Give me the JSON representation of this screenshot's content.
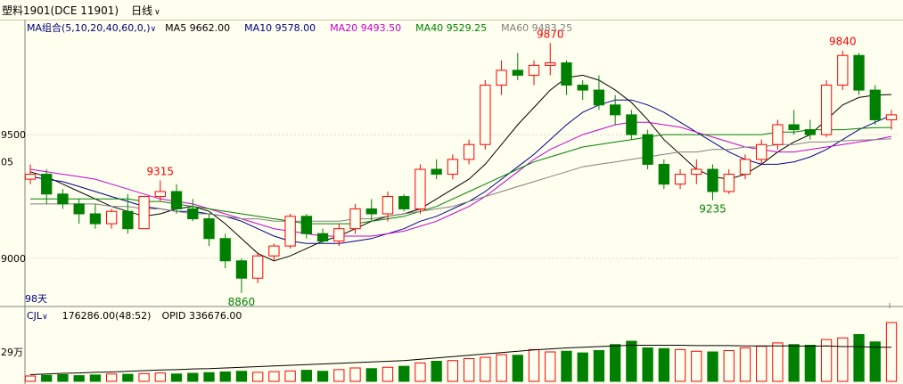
{
  "header": {
    "instrument": "塑料1901(DCE 11901)",
    "period_label": "日线",
    "period_chevron_icon": "chevron-down-icon"
  },
  "legend": {
    "combo_label": "MA组合(5,10,20,40,60,0,)",
    "items": [
      {
        "label": "MA5 9662.00",
        "color": "#000000"
      },
      {
        "label": "MA10 9578.00",
        "color": "#00008b"
      },
      {
        "label": "MA20 9493.50",
        "color": "#cc00cc"
      },
      {
        "label": "MA40 9529.25",
        "color": "#008000"
      },
      {
        "label": "MA60 9483.25",
        "color": "#808080"
      }
    ]
  },
  "volume_legend": {
    "indicator_label": "CJL",
    "volume": "176286.00(48:52)",
    "opid": "OPID 336676.00"
  },
  "axis": {
    "price_ticks": [
      "05",
      "9500",
      "9000"
    ],
    "days_label": "98天",
    "volume_tick": "29万"
  },
  "chart_data": {
    "type": "candlestick",
    "title": "",
    "ylim": [
      8820,
      9900
    ],
    "grid": true,
    "annotations": [
      {
        "text": "9870",
        "kind": "high",
        "bar": 32
      },
      {
        "text": "9315",
        "kind": "high",
        "bar": 8
      },
      {
        "text": "8860",
        "kind": "low",
        "bar": 13
      },
      {
        "text": "9235",
        "kind": "low",
        "bar": 42
      },
      {
        "text": "9840",
        "kind": "high",
        "bar": 50
      }
    ],
    "up_color": "#ff0000",
    "down_color": "#008000",
    "candles": [
      [
        9320,
        9380,
        9300,
        9340
      ],
      [
        9340,
        9360,
        9220,
        9260
      ],
      [
        9260,
        9280,
        9200,
        9220
      ],
      [
        9220,
        9240,
        9140,
        9180
      ],
      [
        9180,
        9220,
        9120,
        9140
      ],
      [
        9140,
        9200,
        9120,
        9190
      ],
      [
        9190,
        9260,
        9100,
        9120
      ],
      [
        9120,
        9250,
        9120,
        9250
      ],
      [
        9250,
        9315,
        9230,
        9270
      ],
      [
        9270,
        9300,
        9180,
        9200
      ],
      [
        9200,
        9240,
        9150,
        9160
      ],
      [
        9160,
        9180,
        9050,
        9080
      ],
      [
        9080,
        9100,
        8960,
        8990
      ],
      [
        8990,
        9000,
        8860,
        8920
      ],
      [
        8920,
        9020,
        8900,
        9010
      ],
      [
        9010,
        9060,
        8990,
        9050
      ],
      [
        9050,
        9180,
        9040,
        9170
      ],
      [
        9170,
        9180,
        9080,
        9100
      ],
      [
        9100,
        9120,
        9060,
        9070
      ],
      [
        9070,
        9140,
        9050,
        9120
      ],
      [
        9120,
        9220,
        9100,
        9200
      ],
      [
        9200,
        9240,
        9150,
        9180
      ],
      [
        9180,
        9270,
        9150,
        9250
      ],
      [
        9250,
        9260,
        9190,
        9200
      ],
      [
        9200,
        9380,
        9180,
        9360
      ],
      [
        9360,
        9400,
        9320,
        9340
      ],
      [
        9340,
        9420,
        9320,
        9400
      ],
      [
        9400,
        9480,
        9380,
        9460
      ],
      [
        9460,
        9720,
        9440,
        9700
      ],
      [
        9700,
        9800,
        9660,
        9760
      ],
      [
        9760,
        9830,
        9720,
        9740
      ],
      [
        9740,
        9800,
        9700,
        9780
      ],
      [
        9780,
        9870,
        9740,
        9790
      ],
      [
        9790,
        9800,
        9660,
        9700
      ],
      [
        9700,
        9720,
        9640,
        9680
      ],
      [
        9680,
        9740,
        9600,
        9620
      ],
      [
        9620,
        9660,
        9540,
        9580
      ],
      [
        9580,
        9600,
        9480,
        9500
      ],
      [
        9500,
        9520,
        9360,
        9380
      ],
      [
        9380,
        9400,
        9280,
        9300
      ],
      [
        9300,
        9360,
        9280,
        9340
      ],
      [
        9340,
        9400,
        9300,
        9360
      ],
      [
        9360,
        9380,
        9235,
        9270
      ],
      [
        9270,
        9360,
        9260,
        9340
      ],
      [
        9340,
        9420,
        9320,
        9400
      ],
      [
        9400,
        9480,
        9380,
        9460
      ],
      [
        9460,
        9560,
        9440,
        9540
      ],
      [
        9540,
        9600,
        9500,
        9520
      ],
      [
        9520,
        9560,
        9480,
        9500
      ],
      [
        9500,
        9720,
        9490,
        9700
      ],
      [
        9700,
        9840,
        9680,
        9820
      ],
      [
        9820,
        9830,
        9660,
        9680
      ],
      [
        9680,
        9700,
        9540,
        9560
      ],
      [
        9560,
        9600,
        9520,
        9580
      ]
    ],
    "series": [
      {
        "name": "MA5",
        "values": [
          9350,
          9330,
          9300,
          9270,
          9240,
          9210,
          9190,
          9170,
          9180,
          9200,
          9210,
          9190,
          9140,
          9080,
          9020,
          8990,
          9010,
          9040,
          9070,
          9090,
          9120,
          9150,
          9170,
          9180,
          9200,
          9240,
          9280,
          9320,
          9380,
          9460,
          9540,
          9610,
          9680,
          9730,
          9740,
          9720,
          9680,
          9630,
          9560,
          9480,
          9420,
          9360,
          9330,
          9320,
          9340,
          9380,
          9430,
          9470,
          9500,
          9560,
          9620,
          9650,
          9660,
          9662
        ]
      },
      {
        "name": "MA10",
        "values": [
          9330,
          9320,
          9310,
          9290,
          9270,
          9250,
          9230,
          9210,
          9200,
          9190,
          9190,
          9180,
          9170,
          9150,
          9120,
          9090,
          9070,
          9060,
          9060,
          9060,
          9070,
          9080,
          9100,
          9120,
          9150,
          9170,
          9200,
          9230,
          9270,
          9320,
          9370,
          9420,
          9480,
          9540,
          9590,
          9620,
          9640,
          9640,
          9620,
          9590,
          9550,
          9510,
          9470,
          9430,
          9400,
          9380,
          9380,
          9390,
          9410,
          9440,
          9480,
          9520,
          9550,
          9578
        ]
      },
      {
        "name": "MA20",
        "values": [
          9360,
          9350,
          9340,
          9330,
          9320,
          9300,
          9280,
          9260,
          9240,
          9230,
          9220,
          9200,
          9180,
          9160,
          9140,
          9120,
          9110,
          9100,
          9090,
          9090,
          9090,
          9090,
          9100,
          9110,
          9130,
          9150,
          9180,
          9210,
          9250,
          9300,
          9350,
          9400,
          9440,
          9470,
          9500,
          9520,
          9540,
          9550,
          9550,
          9540,
          9530,
          9510,
          9490,
          9470,
          9450,
          9440,
          9430,
          9430,
          9440,
          9450,
          9460,
          9470,
          9480,
          9493
        ]
      },
      {
        "name": "MA40",
        "values": [
          9240,
          9240,
          9240,
          9240,
          9240,
          9240,
          9240,
          9230,
          9230,
          9220,
          9210,
          9200,
          9190,
          9180,
          9170,
          9160,
          9150,
          9140,
          9140,
          9140,
          9140,
          9150,
          9160,
          9170,
          9190,
          9210,
          9240,
          9270,
          9300,
          9330,
          9360,
          9390,
          9410,
          9430,
          9450,
          9460,
          9470,
          9480,
          9490,
          9500,
          9500,
          9500,
          9500,
          9500,
          9500,
          9500,
          9510,
          9510,
          9520,
          9520,
          9520,
          9525,
          9528,
          9529
        ]
      },
      {
        "name": "MA60",
        "values": [
          9220,
          9220,
          9220,
          9220,
          9220,
          9210,
          9210,
          9200,
          9200,
          9190,
          9180,
          9180,
          9170,
          9160,
          9160,
          9150,
          9150,
          9150,
          9150,
          9150,
          9160,
          9160,
          9170,
          9180,
          9190,
          9200,
          9210,
          9230,
          9250,
          9270,
          9290,
          9310,
          9330,
          9350,
          9370,
          9380,
          9390,
          9400,
          9410,
          9420,
          9430,
          9430,
          9440,
          9440,
          9450,
          9450,
          9460,
          9460,
          9470,
          9470,
          9475,
          9478,
          9480,
          9483
        ]
      }
    ],
    "volume": {
      "values": [
        16,
        18,
        20,
        17,
        19,
        22,
        21,
        23,
        25,
        22,
        24,
        26,
        28,
        30,
        27,
        29,
        31,
        33,
        30,
        35,
        40,
        38,
        42,
        45,
        55,
        60,
        62,
        68,
        72,
        80,
        78,
        95,
        88,
        90,
        85,
        92,
        110,
        120,
        100,
        98,
        95,
        90,
        88,
        92,
        100,
        105,
        115,
        110,
        108,
        125,
        130,
        140,
        118,
        176
      ],
      "up": [
        true,
        false,
        false,
        false,
        false,
        true,
        false,
        true,
        true,
        false,
        false,
        false,
        false,
        false,
        true,
        true,
        true,
        false,
        false,
        true,
        true,
        false,
        true,
        false,
        true,
        false,
        true,
        true,
        true,
        true,
        false,
        true,
        true,
        false,
        false,
        false,
        false,
        false,
        false,
        false,
        true,
        true,
        false,
        true,
        true,
        true,
        true,
        false,
        false,
        true,
        true,
        false,
        false,
        true
      ],
      "opid_line": [
        20,
        22,
        24,
        25,
        27,
        28,
        30,
        32,
        34,
        35,
        37,
        38,
        40,
        42,
        44,
        46,
        48,
        50,
        52,
        54,
        56,
        58,
        60,
        62,
        66,
        70,
        74,
        78,
        82,
        86,
        90,
        94,
        97,
        100,
        102,
        104,
        106,
        108,
        108,
        108,
        108,
        107,
        107,
        107,
        106,
        106,
        106,
        106,
        105,
        106,
        104,
        104,
        102,
        102
      ]
    }
  }
}
